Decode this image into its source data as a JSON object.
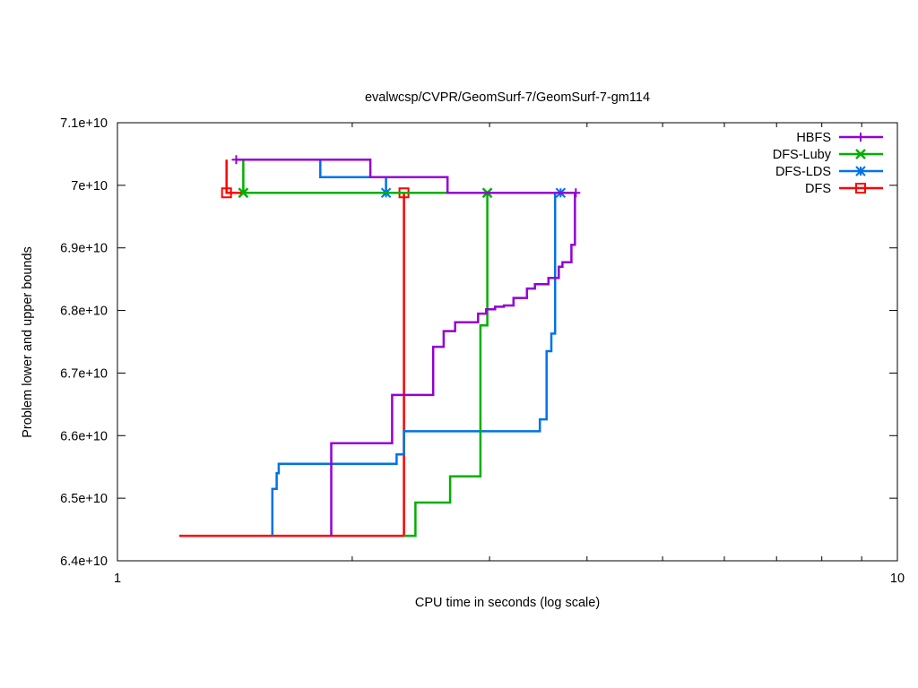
{
  "chart_data": {
    "type": "line",
    "title": "evalwcsp/CVPR/GeomSurf-7/GeomSurf-7-gm114",
    "xlabel": "CPU time in seconds (log scale)",
    "ylabel": "Problem lower and upper bounds",
    "x_scale": "log",
    "xlim": [
      1,
      10
    ],
    "ylim": [
      64000000000,
      71000000000
    ],
    "x_ticks": [
      1,
      10
    ],
    "x_tick_labels": [
      "1",
      "10"
    ],
    "y_ticks": [
      64000000000,
      65000000000,
      66000000000,
      67000000000,
      68000000000,
      69000000000,
      70000000000,
      71000000000
    ],
    "y_tick_labels": [
      "6.4e+10",
      "6.5e+10",
      "6.6e+10",
      "6.7e+10",
      "6.8e+10",
      "6.9e+10",
      "7e+10",
      "7.1e+10"
    ],
    "grid": false,
    "legend_position": "top-right",
    "series": [
      {
        "name": "HBFS",
        "color": "#9400d3",
        "marker": "plus",
        "upper": [
          [
            1.42,
            70410000000
          ],
          [
            2.11,
            70410000000
          ],
          [
            2.11,
            70130000000
          ],
          [
            2.65,
            70130000000
          ],
          [
            2.65,
            69880000000
          ],
          [
            3.87,
            69880000000
          ]
        ],
        "lower": [
          [
            1.88,
            64400000000
          ],
          [
            1.88,
            65880000000
          ],
          [
            2.25,
            65880000000
          ],
          [
            2.25,
            66650000000
          ],
          [
            2.54,
            66650000000
          ],
          [
            2.54,
            67420000000
          ],
          [
            2.62,
            67420000000
          ],
          [
            2.62,
            67670000000
          ],
          [
            2.71,
            67670000000
          ],
          [
            2.71,
            67810000000
          ],
          [
            2.9,
            67810000000
          ],
          [
            2.9,
            67950000000
          ],
          [
            2.97,
            67950000000
          ],
          [
            2.97,
            68020000000
          ],
          [
            3.05,
            68020000000
          ],
          [
            3.05,
            68060000000
          ],
          [
            3.13,
            68060000000
          ],
          [
            3.13,
            68080000000
          ],
          [
            3.22,
            68080000000
          ],
          [
            3.22,
            68200000000
          ],
          [
            3.35,
            68200000000
          ],
          [
            3.35,
            68350000000
          ],
          [
            3.43,
            68350000000
          ],
          [
            3.43,
            68420000000
          ],
          [
            3.57,
            68420000000
          ],
          [
            3.57,
            68520000000
          ],
          [
            3.68,
            68520000000
          ],
          [
            3.68,
            68700000000
          ],
          [
            3.72,
            68700000000
          ],
          [
            3.72,
            68770000000
          ],
          [
            3.82,
            68770000000
          ],
          [
            3.82,
            69050000000
          ],
          [
            3.86,
            69050000000
          ],
          [
            3.86,
            69880000000
          ]
        ],
        "points": [
          [
            1.42,
            70410000000
          ],
          [
            3.87,
            69880000000
          ]
        ]
      },
      {
        "name": "DFS-Luby",
        "color": "#00b000",
        "marker": "cross",
        "upper": [
          [
            1.45,
            70410000000
          ],
          [
            1.45,
            69880000000
          ],
          [
            2.98,
            69880000000
          ]
        ],
        "lower": [
          [
            2.33,
            64400000000
          ],
          [
            2.41,
            64400000000
          ],
          [
            2.41,
            64930000000
          ],
          [
            2.67,
            64930000000
          ],
          [
            2.67,
            65350000000
          ],
          [
            2.92,
            65350000000
          ],
          [
            2.92,
            67760000000
          ],
          [
            2.98,
            67760000000
          ],
          [
            2.98,
            69880000000
          ]
        ],
        "points": [
          [
            1.45,
            69880000000
          ],
          [
            2.98,
            69880000000
          ]
        ]
      },
      {
        "name": "DFS-LDS",
        "color": "#0072e8",
        "marker": "star",
        "upper": [
          [
            1.6,
            70410000000
          ],
          [
            1.82,
            70410000000
          ],
          [
            1.82,
            70130000000
          ],
          [
            2.21,
            70130000000
          ],
          [
            2.21,
            69880000000
          ],
          [
            3.7,
            69880000000
          ]
        ],
        "lower": [
          [
            1.58,
            64400000000
          ],
          [
            1.58,
            65150000000
          ],
          [
            1.6,
            65150000000
          ],
          [
            1.6,
            65400000000
          ],
          [
            1.61,
            65400000000
          ],
          [
            1.61,
            65550000000
          ],
          [
            2.28,
            65550000000
          ],
          [
            2.28,
            65700000000
          ],
          [
            2.33,
            65700000000
          ],
          [
            2.33,
            66070000000
          ],
          [
            3.48,
            66070000000
          ],
          [
            3.48,
            66260000000
          ],
          [
            3.55,
            66260000000
          ],
          [
            3.55,
            67350000000
          ],
          [
            3.6,
            67350000000
          ],
          [
            3.6,
            67630000000
          ],
          [
            3.64,
            67630000000
          ],
          [
            3.64,
            69880000000
          ],
          [
            3.7,
            69880000000
          ]
        ],
        "points": [
          [
            2.21,
            69880000000
          ],
          [
            3.7,
            69880000000
          ]
        ]
      },
      {
        "name": "DFS",
        "color": "#ff0000",
        "marker": "square",
        "upper": [
          [
            1.38,
            70410000000
          ],
          [
            1.38,
            69880000000
          ],
          [
            2.33,
            69880000000
          ]
        ],
        "lower": [
          [
            1.2,
            64400000000
          ],
          [
            2.33,
            64400000000
          ],
          [
            2.33,
            69880000000
          ]
        ],
        "points": [
          [
            1.38,
            69880000000
          ],
          [
            2.33,
            69880000000
          ]
        ]
      }
    ]
  }
}
